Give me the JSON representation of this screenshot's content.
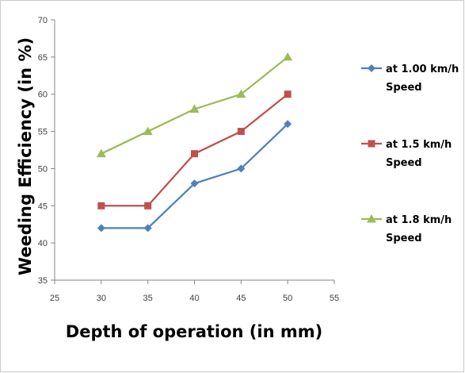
{
  "chart_data": {
    "type": "line",
    "title": "",
    "xlabel": "Depth of operation (in mm)",
    "ylabel": "Weeding Efficiency (in %)",
    "xlim": [
      25,
      55
    ],
    "ylim": [
      35,
      70
    ],
    "xticks": [
      25,
      30,
      35,
      40,
      45,
      50,
      55
    ],
    "yticks": [
      35,
      40,
      45,
      50,
      55,
      60,
      65,
      70
    ],
    "grid": false,
    "legend_position": "right",
    "x": [
      30,
      35,
      40,
      45,
      50
    ],
    "series": [
      {
        "name_line1": "at 1.00 km/h",
        "name_line2": "Speed",
        "values": [
          42,
          42,
          48,
          50,
          56
        ],
        "color": "#4f81bd",
        "marker": "diamond"
      },
      {
        "name_line1": "at 1.5 km/h",
        "name_line2": "Speed",
        "values": [
          45,
          45,
          52,
          55,
          60
        ],
        "color": "#c0504d",
        "marker": "square"
      },
      {
        "name_line1": "at 1.8 km/h",
        "name_line2": "Speed",
        "values": [
          52,
          55,
          58,
          60,
          65
        ],
        "color": "#9bbb59",
        "marker": "triangle"
      }
    ]
  }
}
